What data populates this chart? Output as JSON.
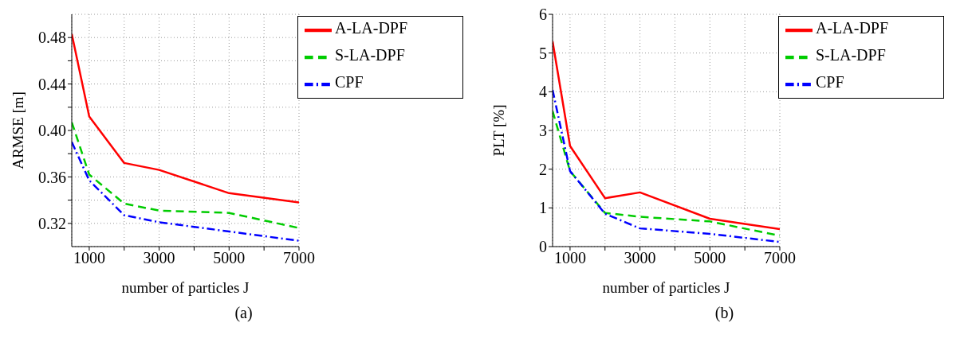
{
  "chart_data": [
    {
      "type": "line",
      "xlabel": "number of particles J",
      "ylabel": "ARMSE [m]",
      "x": [
        500,
        1000,
        2000,
        3000,
        5000,
        7000
      ],
      "xlim": [
        500,
        7000
      ],
      "xticks": [
        1000,
        {
          "value": 2000,
          "label": null
        },
        3000,
        {
          "value": 4000,
          "label": null
        },
        5000,
        {
          "value": 6000,
          "label": null
        },
        7000
      ],
      "ylim": [
        0.3,
        0.5
      ],
      "yticks": [
        0.32,
        {
          "value": 0.34,
          "label": null
        },
        0.36,
        {
          "value": 0.38,
          "label": null
        },
        {
          "value": 0.4,
          "label": "0.40"
        },
        {
          "value": 0.42,
          "label": null
        },
        0.44,
        {
          "value": 0.46,
          "label": null
        },
        0.48
      ],
      "grid": true,
      "legend": "top right",
      "annotations": [
        "(a)"
      ],
      "series": [
        {
          "name": "A-LA-DPF",
          "color": "#ff0000",
          "line_style": "solid",
          "values": [
            0.483,
            0.412,
            0.372,
            0.366,
            0.346,
            0.338
          ]
        },
        {
          "name": "S-LA-DPF",
          "color": "#00cc00",
          "line_style": "dashed",
          "values": [
            0.407,
            0.362,
            0.337,
            0.331,
            0.329,
            0.316
          ]
        },
        {
          "name": "CPF",
          "color": "#0000ff",
          "line_style": "dashdot",
          "values": [
            0.39,
            0.357,
            0.327,
            0.321,
            0.313,
            0.305
          ]
        }
      ]
    },
    {
      "type": "line",
      "xlabel": "number of particles J",
      "ylabel": "PLT [%]",
      "x": [
        500,
        1000,
        2000,
        3000,
        5000,
        7000
      ],
      "xlim": [
        500,
        7000
      ],
      "xticks": [
        1000,
        {
          "value": 2000,
          "label": null
        },
        3000,
        {
          "value": 4000,
          "label": null
        },
        5000,
        {
          "value": 6000,
          "label": null
        },
        7000
      ],
      "ylim": [
        0,
        6
      ],
      "yticks": [
        0,
        1,
        2,
        3,
        4,
        5,
        6
      ],
      "grid": true,
      "legend": "top right",
      "annotations": [
        "(b)"
      ],
      "series": [
        {
          "name": "A-LA-DPF",
          "color": "#ff0000",
          "line_style": "solid",
          "values": [
            5.3,
            2.6,
            1.25,
            1.4,
            0.72,
            0.45
          ]
        },
        {
          "name": "S-LA-DPF",
          "color": "#00cc00",
          "line_style": "dashed",
          "values": [
            3.5,
            1.95,
            0.87,
            0.77,
            0.65,
            0.28
          ]
        },
        {
          "name": "CPF",
          "color": "#0000ff",
          "line_style": "dashdot",
          "values": [
            4.05,
            1.95,
            0.85,
            0.47,
            0.33,
            0.12
          ]
        }
      ]
    }
  ]
}
